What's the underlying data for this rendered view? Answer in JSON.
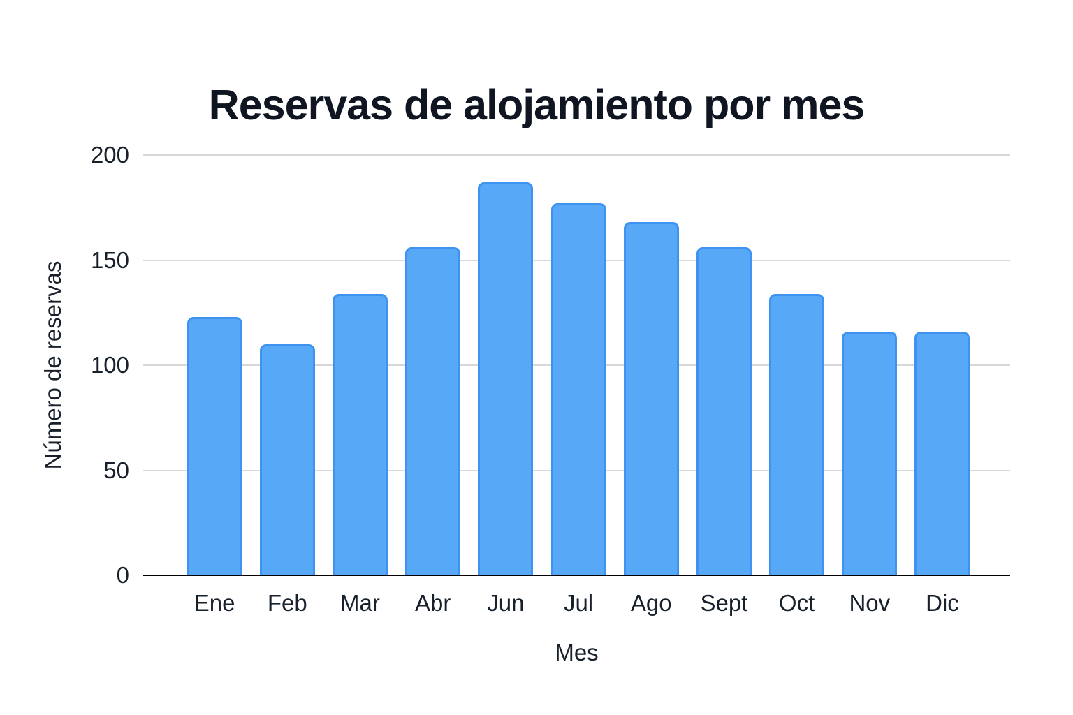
{
  "title": "Reservas de alojamiento por mes",
  "chart_data": {
    "type": "bar",
    "title": "Reservas de alojamiento por mes",
    "xlabel": "Mes",
    "ylabel": "Número de reservas",
    "categories": [
      "Ene",
      "Feb",
      "Mar",
      "Abr",
      "Jun",
      "Jul",
      "Ago",
      "Sept",
      "Oct",
      "Nov",
      "Dic"
    ],
    "values": [
      123,
      110,
      134,
      156,
      187,
      177,
      168,
      156,
      134,
      116,
      116
    ],
    "ylim": [
      0,
      200
    ],
    "yticks": [
      0,
      50,
      100,
      150,
      200
    ],
    "grid": true,
    "legend_position": "none",
    "colors": {
      "bar_fill": "#57a8f6",
      "bar_border": "#3e93f0",
      "gridline": "#d8d8d8",
      "axis_line": "#000000",
      "text": "#17202b",
      "title_text": "#0f1621",
      "background": "#ffffff"
    }
  }
}
